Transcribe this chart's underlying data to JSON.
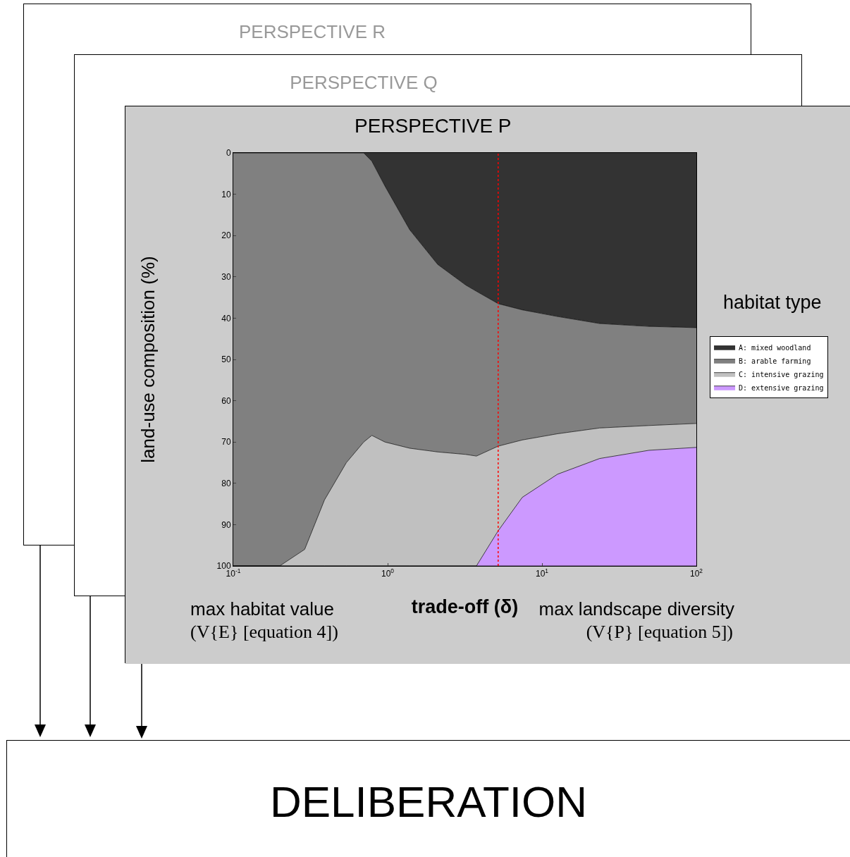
{
  "chart_data": {
    "type": "area",
    "stacked": true,
    "title": "PERSPECTIVE P",
    "xlabel": "trade-off (δ)",
    "ylabel": "land-use composition (%)",
    "legend_title": "habitat type",
    "log": "x",
    "legend": "right",
    "x": [
      0.1,
      0.2,
      0.29,
      0.39,
      0.54,
      0.7,
      0.79,
      0.96,
      1.39,
      2.11,
      3.21,
      3.76,
      5.2,
      7.45,
      12.6,
      23.6,
      49.4,
      100
    ],
    "xlim": [
      0.1,
      100
    ],
    "xticks": [
      {
        "value": 0.1,
        "label": "10$^{-1}$"
      },
      {
        "value": 1,
        "label": "10$^{0}$"
      },
      {
        "value": 10,
        "label": "10$^{1}$"
      },
      {
        "value": 100,
        "label": "10$^{2}$"
      }
    ],
    "ylim": [
      100,
      0
    ],
    "yticks": [
      0,
      10,
      20,
      30,
      40,
      50,
      60,
      70,
      80,
      90,
      100
    ],
    "series": [
      {
        "name": "A: mixed woodland",
        "color": "#333333",
        "values": [
          0,
          0,
          0,
          0,
          0,
          0,
          2,
          8,
          18.6,
          27,
          32,
          33.5,
          36.5,
          38,
          39.6,
          41.3,
          42,
          42.3
        ]
      },
      {
        "name": "B: arable farming",
        "color": "#808080",
        "values": [
          100,
          100,
          96,
          84,
          75,
          70,
          66.4,
          62,
          52.9,
          45.4,
          41,
          39.9,
          34.5,
          31.5,
          28.4,
          25.3,
          24,
          23.2
        ]
      },
      {
        "name": "C: intensive grazing",
        "color": "#c0c0c0",
        "values": [
          0,
          0,
          4,
          16,
          25,
          30,
          31.6,
          30,
          28.5,
          27.6,
          27,
          26.6,
          20.5,
          13.9,
          9.8,
          7.4,
          6,
          5.8
        ]
      },
      {
        "name": "D: extensive grazing",
        "color": "#cc99ff",
        "values": [
          0,
          0,
          0,
          0,
          0,
          0,
          0,
          0,
          0,
          0,
          0,
          0,
          8.5,
          16.6,
          22.2,
          26,
          28,
          28.7
        ]
      }
    ],
    "ref_lines": [
      {
        "axis": "x",
        "value": 5.2,
        "color": "#ff0000",
        "line_style": "dotted"
      }
    ],
    "annotations": [
      "PERSPECTIVE R",
      "PERSPECTIVE Q",
      "max habitat value",
      "(V{E} [equation 4])",
      "max landscape diversity",
      "(V{P} [equation 5])",
      "DELIBERATION"
    ]
  }
}
